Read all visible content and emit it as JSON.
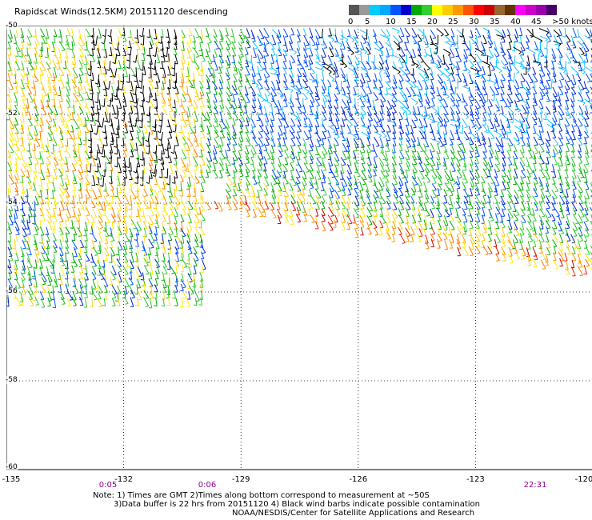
{
  "title": "Rapidscat Winds(12.5KM) 20151120 descending",
  "colorbar": {
    "colors": [
      "#555555",
      "#999999",
      "#00ccff",
      "#00aaff",
      "#0055ff",
      "#0000cc",
      "#00aa00",
      "#33cc33",
      "#ffff00",
      "#ffcc00",
      "#ff9900",
      "#ff5500",
      "#ff0000",
      "#cc0000",
      "#996633",
      "#663300",
      "#ff00ff",
      "#cc00cc",
      "#9900aa",
      "#440066"
    ],
    "labels": [
      "0",
      "5",
      "10",
      "15",
      "20",
      "25",
      "30",
      "35",
      "40",
      "45",
      ">50 knots"
    ]
  },
  "map": {
    "lat_labels": [
      "-50",
      "-52",
      "-54",
      "-56",
      "-58",
      "-60"
    ],
    "lon_labels": [
      "-135",
      "-132",
      "-129",
      "-126",
      "-123",
      "-120"
    ],
    "times": [
      "0:05",
      "0:06",
      "22:31"
    ]
  },
  "notes": {
    "line1": "Note: 1) Times are GMT 2)Times along bottom correspond to measurement at ~50S",
    "line2": "3)Data buffer is 22 hrs from 20151120 4) Black wind barbs indicate possible contamination",
    "line3": "NOAA/NESDIS/Center for Satellite Applications and Research"
  }
}
